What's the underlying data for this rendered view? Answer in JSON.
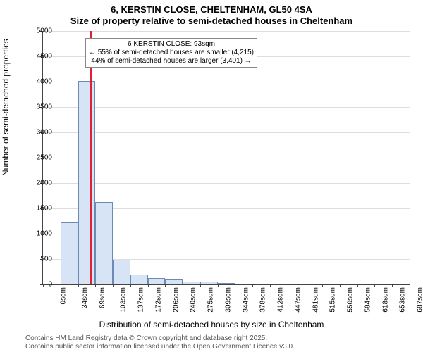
{
  "title_main": "6, KERSTIN CLOSE, CHELTENHAM, GL50 4SA",
  "title_sub": "Size of property relative to semi-detached houses in Cheltenham",
  "ylabel": "Number of semi-detached properties",
  "xlabel": "Distribution of semi-detached houses by size in Cheltenham",
  "footer1": "Contains HM Land Registry data © Crown copyright and database right 2025.",
  "footer2": "Contains public sector information licensed under the Open Government Licence v3.0.",
  "chart": {
    "type": "histogram",
    "ylim": [
      0,
      5000
    ],
    "ytick_step": 500,
    "x_start": 0,
    "x_bin_width": 34.375,
    "x_end": 721.875,
    "bar_fill": "#d6e4f5",
    "bar_stroke": "#6b8bb5",
    "grid_color": "#dddddd",
    "axis_color": "#444444",
    "background": "#ffffff",
    "marker_x": 93,
    "marker_color": "#dd2233",
    "xtick_labels": [
      "0sqm",
      "34sqm",
      "69sqm",
      "103sqm",
      "137sqm",
      "172sqm",
      "206sqm",
      "240sqm",
      "275sqm",
      "309sqm",
      "344sqm",
      "378sqm",
      "412sqm",
      "447sqm",
      "481sqm",
      "515sqm",
      "550sqm",
      "584sqm",
      "618sqm",
      "653sqm",
      "687sqm"
    ],
    "values": [
      0,
      1220,
      4020,
      1620,
      480,
      200,
      120,
      100,
      60,
      50,
      30,
      0,
      0,
      0,
      0,
      0,
      0,
      0,
      0,
      0,
      0
    ],
    "annotation": {
      "line1": "6 KERSTIN CLOSE: 93sqm",
      "line2": "← 55% of semi-detached houses are smaller (4,215)",
      "line3": "44% of semi-detached houses are larger (3,401) →"
    }
  }
}
